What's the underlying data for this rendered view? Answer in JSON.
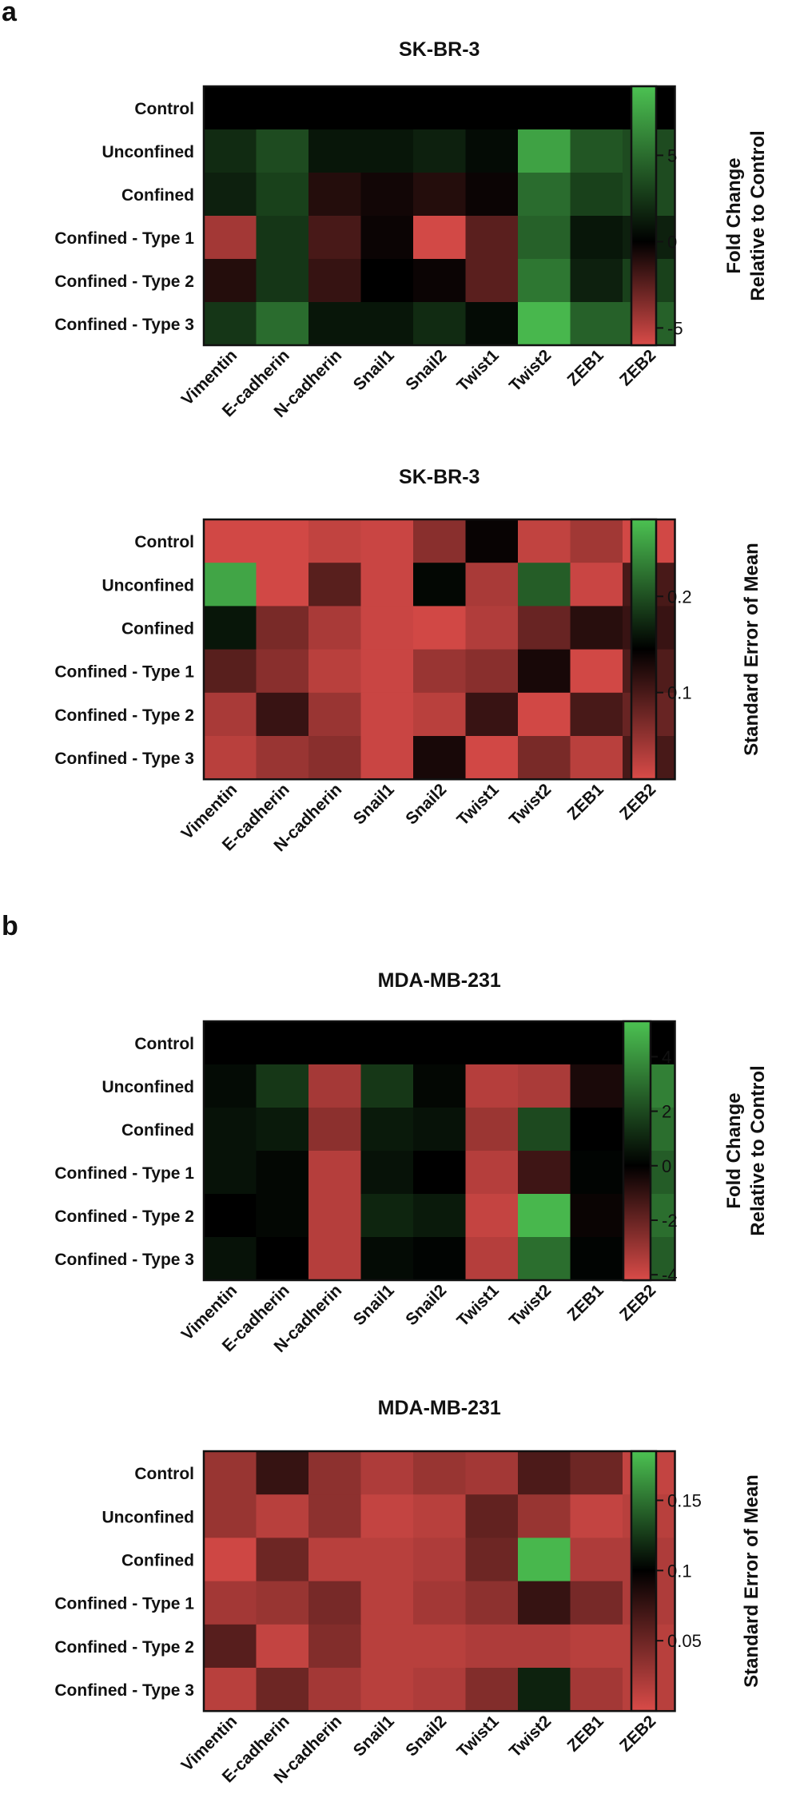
{
  "panels": [
    {
      "letter": "a"
    },
    {
      "letter": "b"
    }
  ],
  "colors": {
    "low": "#d94b48",
    "mid": "#000000",
    "high": "#4cc252",
    "frame": "#111111"
  },
  "chart_data": [
    {
      "type": "heatmap",
      "title": "SK-BR-3",
      "rows": [
        "Control",
        "Unconfined",
        "Confined",
        "Confined - Type 1",
        "Confined - Type 2",
        "Confined - Type 3"
      ],
      "columns": [
        "Vimentin",
        "E-cadherin",
        "N-cadherin",
        "Snail1",
        "Snail2",
        "Twist1",
        "Twist2",
        "ZEB1",
        "ZEB2"
      ],
      "values": [
        [
          0,
          0,
          0,
          0,
          0,
          0,
          0,
          0,
          0
        ],
        [
          2,
          3.5,
          1,
          1,
          1.5,
          0.5,
          7.5,
          4,
          3.5
        ],
        [
          1.5,
          3,
          -1,
          -0.5,
          -1,
          -0.3,
          5,
          3,
          3.5
        ],
        [
          -4.5,
          2.5,
          -2,
          -0.3,
          -5.8,
          -2.5,
          4.5,
          1,
          1.5
        ],
        [
          -1,
          2.5,
          -1.5,
          0,
          -0.3,
          -2.5,
          5.5,
          1.5,
          3
        ],
        [
          2.5,
          5,
          1,
          1,
          2,
          0.5,
          8.5,
          4.5,
          4.5
        ]
      ],
      "colorbar": {
        "label_line1": "Fold Change",
        "label_line2": "Relative to Control",
        "range": [
          -6,
          9
        ],
        "ticks": [
          5,
          0,
          -5
        ]
      }
    },
    {
      "type": "heatmap",
      "title": "SK-BR-3",
      "rows": [
        "Control",
        "Unconfined",
        "Confined",
        "Confined - Type 1",
        "Confined - Type 2",
        "Confined - Type 3"
      ],
      "columns": [
        "Vimentin",
        "E-cadherin",
        "N-cadherin",
        "Snail1",
        "Snail2",
        "Twist1",
        "Twist2",
        "ZEB1",
        "ZEB2"
      ],
      "values": [
        [
          0.015,
          0.015,
          0.025,
          0.02,
          0.06,
          0.14,
          0.025,
          0.045,
          0.015
        ],
        [
          0.26,
          0.015,
          0.09,
          0.02,
          0.15,
          0.04,
          0.21,
          0.02,
          0.1
        ],
        [
          0.16,
          0.07,
          0.04,
          0.02,
          0.015,
          0.035,
          0.08,
          0.12,
          0.11
        ],
        [
          0.09,
          0.06,
          0.03,
          0.02,
          0.05,
          0.06,
          0.13,
          0.015,
          0.095
        ],
        [
          0.04,
          0.11,
          0.05,
          0.02,
          0.03,
          0.11,
          0.015,
          0.1,
          0.08
        ],
        [
          0.03,
          0.05,
          0.06,
          0.02,
          0.13,
          0.015,
          0.07,
          0.03,
          0.1
        ]
      ],
      "colorbar": {
        "label_line1": "Standard Error of Mean",
        "label_line2": "",
        "range": [
          0.01,
          0.28
        ],
        "mid": 0.145,
        "ticks": [
          0.2,
          0.1
        ]
      }
    },
    {
      "type": "heatmap",
      "title": "MDA-MB-231",
      "rows": [
        "Control",
        "Unconfined",
        "Confined",
        "Confined - Type 1",
        "Confined - Type 2",
        "Confined - Type 3"
      ],
      "columns": [
        "Vimentin",
        "E-cadherin",
        "N-cadherin",
        "Snail1",
        "Snail2",
        "Twist1",
        "Twist2",
        "ZEB1",
        "ZEB2"
      ],
      "values": [
        [
          0,
          0,
          0,
          0,
          0,
          0,
          0,
          0,
          0
        ],
        [
          0.3,
          1.5,
          -3.2,
          1.5,
          0.2,
          -3.5,
          -3.3,
          -0.5,
          3.5
        ],
        [
          0.5,
          0.7,
          -2.7,
          0.7,
          0.5,
          -3,
          2,
          0,
          3
        ],
        [
          0.5,
          0.2,
          -3.5,
          0.5,
          0,
          -3.5,
          -1.2,
          0.1,
          2.5
        ],
        [
          0,
          0.2,
          -3.5,
          1,
          0.7,
          -3.8,
          5,
          -0.2,
          3
        ],
        [
          0.5,
          0,
          -3.5,
          0.3,
          0.1,
          -3.5,
          3,
          0.1,
          2.5
        ]
      ],
      "colorbar": {
        "label_line1": "Fold Change",
        "label_line2": "Relative to Control",
        "range": [
          -4.2,
          5.3
        ],
        "ticks": [
          4,
          2,
          0,
          -2,
          -4
        ]
      }
    },
    {
      "type": "heatmap",
      "title": "MDA-MB-231",
      "rows": [
        "Control",
        "Unconfined",
        "Confined",
        "Confined - Type 1",
        "Confined - Type 2",
        "Confined - Type 3"
      ],
      "columns": [
        "Vimentin",
        "E-cadherin",
        "N-cadherin",
        "Snail1",
        "Snail2",
        "Twist1",
        "Twist2",
        "ZEB1",
        "ZEB2"
      ],
      "values": [
        [
          0.03,
          0.075,
          0.035,
          0.02,
          0.03,
          0.025,
          0.065,
          0.05,
          0.01
        ],
        [
          0.03,
          0.015,
          0.035,
          0.01,
          0.015,
          0.055,
          0.03,
          0.01,
          0.015
        ],
        [
          0.005,
          0.05,
          0.015,
          0.015,
          0.02,
          0.05,
          0.18,
          0.02,
          0.02
        ],
        [
          0.025,
          0.03,
          0.045,
          0.015,
          0.025,
          0.035,
          0.075,
          0.045,
          0.02
        ],
        [
          0.06,
          0.01,
          0.04,
          0.015,
          0.015,
          0.02,
          0.02,
          0.015,
          0.015
        ],
        [
          0.015,
          0.05,
          0.025,
          0.015,
          0.02,
          0.04,
          0.115,
          0.025,
          0.015
        ]
      ],
      "colorbar": {
        "label_line1": "Standard Error of Mean",
        "label_line2": "",
        "range": [
          0.0,
          0.185
        ],
        "mid": 0.1,
        "ticks": [
          0.15,
          0.1,
          0.05
        ]
      }
    }
  ]
}
